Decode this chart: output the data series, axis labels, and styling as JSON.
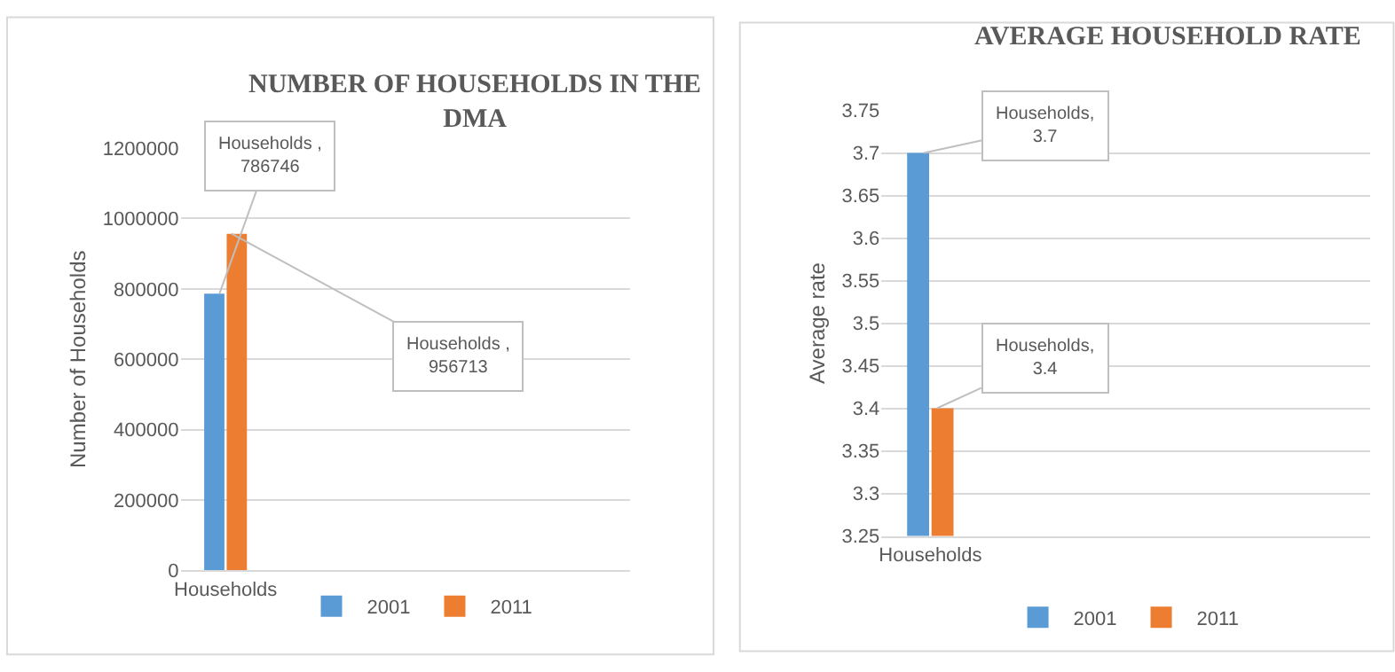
{
  "chart_data": [
    {
      "type": "bar",
      "title": "NUMBER OF HOUSEHOLDS IN THE\nDMA",
      "ylabel": "Number of Households",
      "categories": [
        "Households",
        null,
        null,
        null,
        null
      ],
      "series": [
        {
          "name": "2001",
          "color": "#5b9bd5",
          "values": [
            786746,
            null,
            null,
            null,
            null
          ],
          "value_labels": [
            "Households ,\n786746",
            null,
            null,
            null,
            null
          ]
        },
        {
          "name": "2011",
          "color": "#ed7d31",
          "values": [
            956713,
            null,
            null,
            null,
            null
          ],
          "value_labels": [
            "Households ,\n956713",
            null,
            null,
            null,
            null
          ]
        }
      ],
      "ylim": [
        0,
        1200000
      ],
      "yticks": [
        0,
        200000,
        400000,
        600000,
        800000,
        1000000,
        1200000
      ],
      "grid": "y",
      "legend": "bottom"
    },
    {
      "type": "bar",
      "title": "AVERAGE HOUSEHOLD RATE",
      "ylabel": "Average rate",
      "categories": [
        "Households",
        null,
        null,
        null,
        null
      ],
      "series": [
        {
          "name": "2001",
          "color": "#5b9bd5",
          "values": [
            3.7,
            null,
            null,
            null,
            null
          ],
          "value_labels": [
            "Households,\n3.7",
            null,
            null,
            null,
            null
          ]
        },
        {
          "name": "2011",
          "color": "#ed7d31",
          "values": [
            3.4,
            null,
            null,
            null,
            null
          ],
          "value_labels": [
            "Households,\n3.4",
            null,
            null,
            null,
            null
          ]
        }
      ],
      "ylim": [
        3.25,
        3.75
      ],
      "yticks": [
        3.25,
        3.3,
        3.35,
        3.4,
        3.45,
        3.5,
        3.55,
        3.6,
        3.65,
        3.7,
        3.75
      ],
      "grid": "y",
      "legend": "bottom"
    }
  ]
}
